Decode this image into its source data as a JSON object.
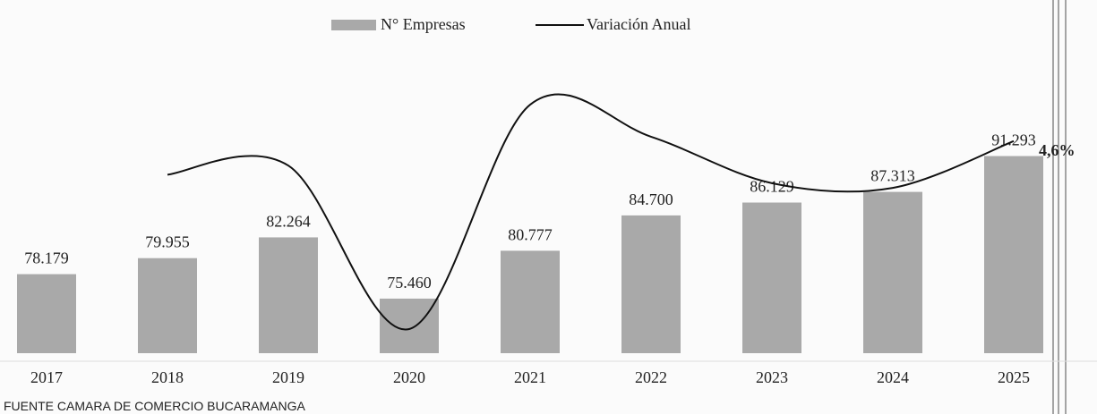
{
  "chart_data": {
    "type": "bar",
    "categories": [
      "2017",
      "2018",
      "2019",
      "2020",
      "2021",
      "2022",
      "2023",
      "2024",
      "2025"
    ],
    "series": [
      {
        "name": "N° Empresas",
        "type": "bar",
        "color": "#a9a9a9",
        "values": [
          78179,
          79955,
          82264,
          75460,
          80777,
          84700,
          86129,
          87313,
          91293
        ],
        "value_labels": [
          "78.179",
          "79.955",
          "82.264",
          "75.460",
          "80.777",
          "84.700",
          "86.129",
          "87.313",
          "91.293"
        ]
      },
      {
        "name": "Variación Anual",
        "type": "line",
        "axis": "y2",
        "color": "#111111",
        "values": [
          null,
          2.27,
          2.89,
          -8.27,
          7.05,
          4.86,
          1.69,
          1.37,
          4.56
        ],
        "value_labels": [
          null,
          null,
          null,
          null,
          null,
          null,
          null,
          null,
          "4,6%"
        ]
      }
    ],
    "ylim": [
      69400,
      97700
    ],
    "y2lim": [
      -9.92,
      7.48
    ],
    "legend": "top",
    "source": "FUENTE CAMARA DE COMERCIO BUCARAMANGA"
  }
}
